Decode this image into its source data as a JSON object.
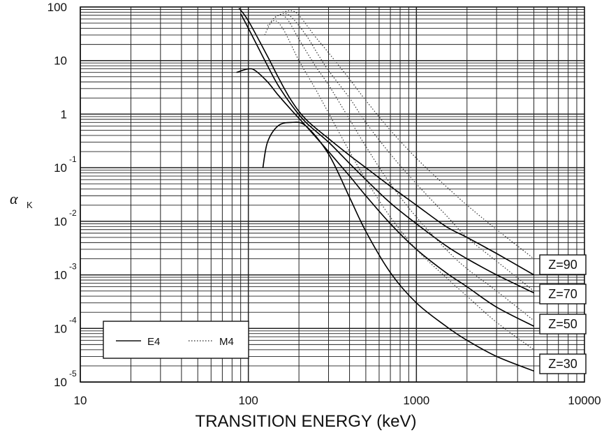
{
  "chart_data": {
    "type": "line",
    "title": "",
    "xlabel": "TRANSITION ENERGY (keV)",
    "ylabel": {
      "symbol": "α",
      "subscript": "K"
    },
    "xscale": "log",
    "yscale": "log",
    "xlim": [
      10,
      10000
    ],
    "ylim": [
      1e-05,
      100
    ],
    "grid": true,
    "x_ticks": [
      "10",
      "100",
      "1000",
      "10000"
    ],
    "y_ticks": [
      {
        "value": 100,
        "base": "100",
        "exp": ""
      },
      {
        "value": 10,
        "base": "10",
        "exp": ""
      },
      {
        "value": 1,
        "base": "1",
        "exp": ""
      },
      {
        "value": 0.1,
        "base": "10",
        "exp": "-1"
      },
      {
        "value": 0.01,
        "base": "10",
        "exp": "-2"
      },
      {
        "value": 0.001,
        "base": "10",
        "exp": "-3"
      },
      {
        "value": 0.0001,
        "base": "10",
        "exp": "-4"
      },
      {
        "value": 1e-05,
        "base": "10",
        "exp": "-5"
      }
    ],
    "legend": {
      "position": "bottom-left",
      "entries": [
        {
          "label": "E4",
          "style": "solid"
        },
        {
          "label": "M4",
          "style": "dotted"
        }
      ]
    },
    "curve_labels": [
      "Z=90",
      "Z=70",
      "Z=50",
      "Z=30"
    ],
    "series": [
      {
        "multipolarity": "E4",
        "z": "Z=30",
        "style": "solid",
        "x": [
          122,
          130,
          150,
          180,
          220,
          300,
          400,
          500,
          700,
          1000,
          1500,
          2000,
          3000,
          5000
        ],
        "y": [
          0.1,
          0.3,
          0.6,
          0.7,
          0.6,
          0.18,
          0.028,
          0.0065,
          0.0011,
          0.0003,
          0.00011,
          6e-05,
          3e-05,
          1.6e-05
        ]
      },
      {
        "multipolarity": "E4",
        "z": "Z=50",
        "style": "solid",
        "x": [
          85,
          100,
          110,
          130,
          150,
          180,
          220,
          300,
          400,
          500,
          700,
          1000,
          1500,
          2000,
          3000,
          5000
        ],
        "y": [
          6,
          7,
          6.5,
          4,
          2.3,
          1.2,
          0.6,
          0.2,
          0.07,
          0.03,
          0.009,
          0.003,
          0.0011,
          0.0006,
          0.00025,
          0.00011
        ]
      },
      {
        "multipolarity": "E4",
        "z": "Z=70",
        "style": "solid",
        "x": [
          90,
          100,
          130,
          150,
          180,
          220,
          300,
          400,
          500,
          700,
          1000,
          1500,
          2000,
          3000,
          5000
        ],
        "y": [
          75,
          40,
          8,
          3.5,
          1.5,
          0.7,
          0.3,
          0.12,
          0.06,
          0.022,
          0.009,
          0.0035,
          0.002,
          0.001,
          0.00046
        ]
      },
      {
        "multipolarity": "E4",
        "z": "Z=90",
        "style": "solid",
        "x": [
          88,
          100,
          130,
          150,
          180,
          220,
          300,
          400,
          500,
          700,
          1000,
          1500,
          2000,
          3000,
          5000
        ],
        "y": [
          95,
          55,
          12,
          5,
          1.8,
          0.8,
          0.35,
          0.17,
          0.1,
          0.045,
          0.02,
          0.008,
          0.005,
          0.0025,
          0.001
        ]
      },
      {
        "multipolarity": "M4",
        "z": "Z=30",
        "style": "dotted",
        "x": [
          125,
          140,
          160,
          200,
          250,
          300,
          400,
          500,
          700,
          1000,
          1500,
          2000,
          3000,
          5000
        ],
        "y": [
          30,
          55,
          40,
          10,
          3,
          1.05,
          0.2,
          0.06,
          0.012,
          0.003,
          0.0009,
          0.0004,
          0.00013,
          4e-05
        ]
      },
      {
        "multipolarity": "M4",
        "z": "Z=50",
        "style": "dotted",
        "x": [
          130,
          150,
          170,
          200,
          250,
          300,
          400,
          500,
          700,
          1000,
          1500,
          2000,
          3000,
          5000
        ],
        "y": [
          45,
          70,
          60,
          25,
          8,
          3.5,
          0.8,
          0.25,
          0.05,
          0.012,
          0.003,
          0.0013,
          0.0005,
          0.00014
        ]
      },
      {
        "multipolarity": "M4",
        "z": "Z=70",
        "style": "dotted",
        "x": [
          140,
          160,
          180,
          220,
          260,
          300,
          400,
          500,
          700,
          1000,
          1500,
          2000,
          3000,
          5000
        ],
        "y": [
          60,
          75,
          65,
          30,
          13,
          6.5,
          2,
          0.7,
          0.18,
          0.05,
          0.013,
          0.005,
          0.0018,
          0.0005
        ]
      },
      {
        "multipolarity": "M4",
        "z": "Z=90",
        "style": "dotted",
        "x": [
          160,
          180,
          200,
          250,
          300,
          400,
          500,
          700,
          1000,
          1500,
          2000,
          3000,
          5000
        ],
        "y": [
          80,
          85,
          70,
          28,
          14,
          4.5,
          1.8,
          0.5,
          0.15,
          0.045,
          0.02,
          0.007,
          0.002
        ]
      }
    ]
  }
}
